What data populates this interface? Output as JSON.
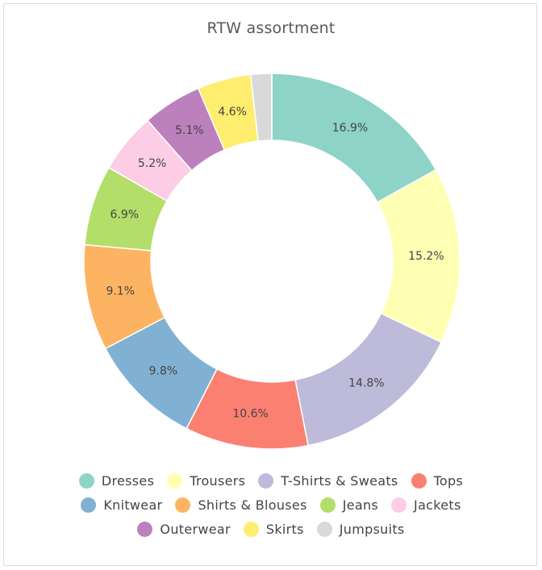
{
  "chart_data": {
    "type": "pie",
    "variant": "donut",
    "title": "RTW assortment",
    "legend_position": "bottom",
    "slices": [
      {
        "name": "Dresses",
        "value": 16.9,
        "label": "16.9%",
        "color": "#8dd3c7"
      },
      {
        "name": "Trousers",
        "value": 15.2,
        "label": "15.2%",
        "color": "#ffffb3"
      },
      {
        "name": "T-Shirts & Sweats",
        "value": 14.8,
        "label": "14.8%",
        "color": "#bebada"
      },
      {
        "name": "Tops",
        "value": 10.6,
        "label": "10.6%",
        "color": "#fb8072"
      },
      {
        "name": "Knitwear",
        "value": 9.8,
        "label": "9.8%",
        "color": "#80b1d3"
      },
      {
        "name": "Shirts & Blouses",
        "value": 9.1,
        "label": "9.1%",
        "color": "#fdb462"
      },
      {
        "name": "Jeans",
        "value": 6.9,
        "label": "6.9%",
        "color": "#b3de69"
      },
      {
        "name": "Jackets",
        "value": 5.2,
        "label": "5.2%",
        "color": "#fccde5"
      },
      {
        "name": "Outerwear",
        "value": 5.1,
        "label": "5.1%",
        "color": "#bc80bd"
      },
      {
        "name": "Skirts",
        "value": 4.6,
        "label": "4.6%",
        "color": "#ffed6f"
      },
      {
        "name": "Jumpsuits",
        "value": 1.8,
        "label": "",
        "color": "#d9d9d9"
      }
    ]
  }
}
